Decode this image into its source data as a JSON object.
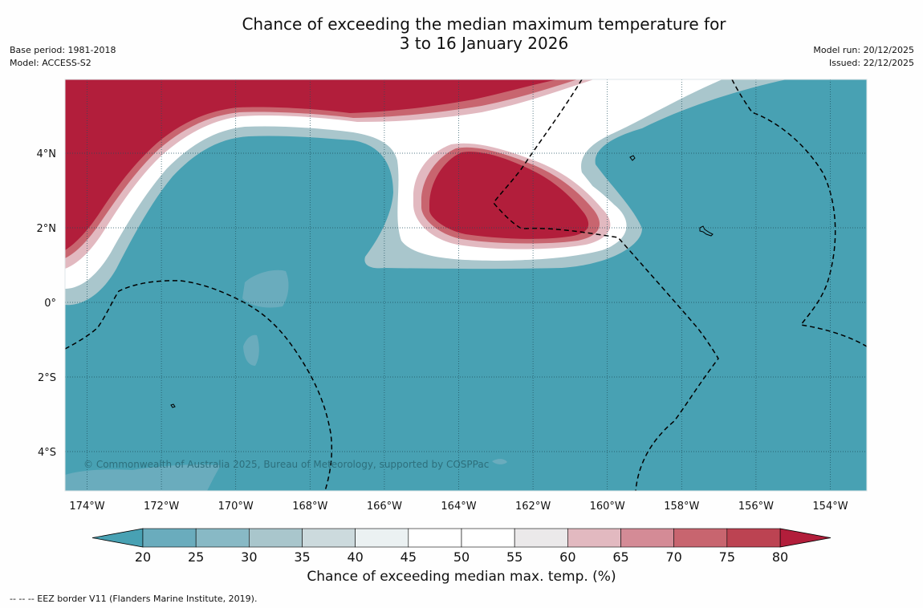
{
  "title": {
    "line1": "Chance of exceeding the median maximum temperature for",
    "line2": "3 to 16 January 2026"
  },
  "meta_left": {
    "base_period": "Base period: 1981-2018",
    "model": "Model: ACCESS-S2"
  },
  "meta_right": {
    "model_run": "Model run: 20/12/2025",
    "issued": "Issued: 22/12/2025"
  },
  "map": {
    "lat_labels": [
      "4°N",
      "2°N",
      "0°",
      "2°S",
      "4°S"
    ],
    "lon_labels": [
      "174°W",
      "172°W",
      "170°W",
      "168°W",
      "166°W",
      "164°W",
      "162°W",
      "160°W",
      "158°W",
      "156°W",
      "154°W"
    ],
    "copyright": "© Commonwealth of Australia 2025, Bureau of Meteorology, supported by COSPPac",
    "ocean_color": "#48a1b3",
    "hot_color": "#b21e3b"
  },
  "colorbar": {
    "tick_labels": [
      "20",
      "25",
      "30",
      "35",
      "40",
      "45",
      "50",
      "55",
      "60",
      "65",
      "70",
      "75",
      "80"
    ],
    "bin_colors": [
      "#6aacbd",
      "#88b9c5",
      "#a9c6cc",
      "#ccdadd",
      "#ebf1f2",
      "#ffffff",
      "#ffffff",
      "#ebe9ea",
      "#e2b9c0",
      "#d48b96",
      "#c8656f",
      "#bc4352"
    ],
    "under_color": "#48a1b3",
    "over_color": "#b21e3b",
    "label": "Chance of exceeding median max. temp. (%)"
  },
  "footer": "--  --  -- EEZ border V11 (Flanders Marine Institute, 2019)."
}
